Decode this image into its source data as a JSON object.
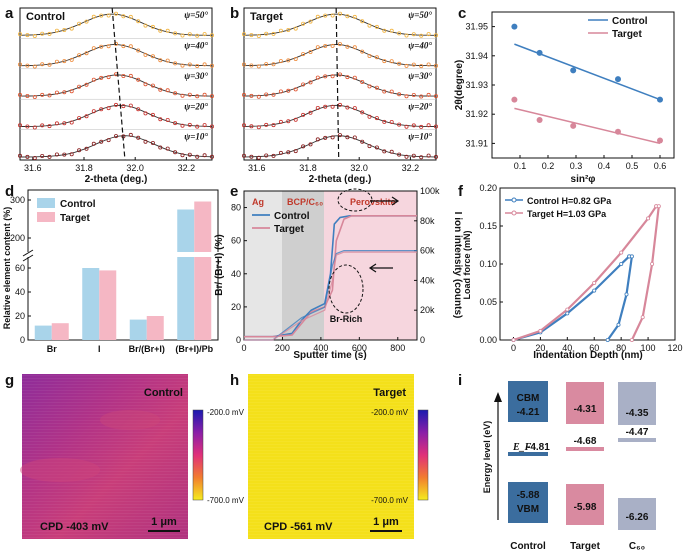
{
  "panel_letters": [
    "a",
    "b",
    "c",
    "d",
    "e",
    "f",
    "g",
    "h",
    "i"
  ],
  "colors": {
    "control": "#3f7fbf",
    "target": "#d7879a",
    "peak": "#c0392b"
  },
  "chart_data": [
    {
      "id": "a",
      "type": "line",
      "title": "Control",
      "xlabel": "2-theta (deg.)",
      "xlim": [
        31.55,
        32.3
      ],
      "xticks": [
        "31.6",
        "31.8",
        "32.0",
        "32.2"
      ],
      "psi_labels": [
        "ψ=50°",
        "ψ=40°",
        "ψ=30°",
        "ψ=20°",
        "ψ=10°"
      ],
      "peak_positions": [
        31.91,
        31.92,
        31.93,
        31.94,
        31.96
      ],
      "curve_colors": [
        "#f2b33d",
        "#ee8a3a",
        "#e0542f",
        "#c8312c",
        "#8a1f1f"
      ]
    },
    {
      "id": "b",
      "type": "line",
      "title": "Target",
      "xlabel": "2-theta (deg.)",
      "xlim": [
        31.55,
        32.3
      ],
      "xticks": [
        "31.6",
        "31.8",
        "32.0",
        "32.2"
      ],
      "psi_labels": [
        "ψ=50°",
        "ψ=40°",
        "ψ=30°",
        "ψ=20°",
        "ψ=10°"
      ],
      "peak_positions": [
        31.91,
        31.91,
        31.91,
        31.91,
        31.92
      ],
      "curve_colors": [
        "#f2b33d",
        "#ee8a3a",
        "#e0542f",
        "#c8312c",
        "#8a1f1f"
      ]
    },
    {
      "id": "c",
      "type": "scatter",
      "xlabel": "sin²φ",
      "ylabel": "2θ(degree)",
      "xlim": [
        0.0,
        0.65
      ],
      "ylim": [
        31.905,
        31.955
      ],
      "xticks": [
        "0.1",
        "0.2",
        "0.3",
        "0.4",
        "0.5",
        "0.6"
      ],
      "yticks": [
        "31.91",
        "31.92",
        "31.93",
        "31.94",
        "31.95"
      ],
      "series": [
        {
          "name": "Control",
          "x": [
            0.08,
            0.17,
            0.29,
            0.45,
            0.6
          ],
          "y": [
            31.95,
            31.941,
            31.935,
            31.932,
            31.925
          ],
          "fit": [
            [
              0.08,
              31.944
            ],
            [
              0.6,
              31.925
            ]
          ]
        },
        {
          "name": "Target",
          "x": [
            0.08,
            0.17,
            0.29,
            0.45,
            0.6
          ],
          "y": [
            31.925,
            31.918,
            31.916,
            31.914,
            31.911
          ],
          "fit": [
            [
              0.08,
              31.922
            ],
            [
              0.6,
              31.91
            ]
          ]
        }
      ]
    },
    {
      "id": "d",
      "type": "bar",
      "ylabel": "Relative element content (%)",
      "categories": [
        "Br",
        "I",
        "Br/(Br+I)",
        "(Br+I)/Pb"
      ],
      "yticks_low": [
        "0",
        "20",
        "40",
        "60"
      ],
      "yticks_high": [
        "200",
        "300"
      ],
      "series": [
        {
          "name": "Control",
          "values": [
            12,
            60,
            17,
            275
          ]
        },
        {
          "name": "Target",
          "values": [
            14,
            58,
            20,
            296
          ]
        }
      ]
    },
    {
      "id": "e",
      "type": "line",
      "xlabel": "Sputter time (s)",
      "ylabel_left": "Br/ (Br+I) (%)",
      "ylabel_right": "I ion intensity (counts)",
      "xlim": [
        0,
        900
      ],
      "xticks": [
        "0",
        "200",
        "400",
        "600",
        "800"
      ],
      "ylim_left": [
        0,
        90
      ],
      "yticks_left": [
        "0",
        "20",
        "40",
        "60",
        "80"
      ],
      "ylim_right": [
        0,
        100000
      ],
      "yticks_right": [
        "0",
        "20k",
        "40k",
        "60k",
        "80k",
        "100k"
      ],
      "regions": [
        "Ag",
        "BCP/C₆₀",
        "Perovskite"
      ],
      "annotation": "Br-Rich",
      "series": [
        {
          "name": "Control",
          "x": [
            0,
            150,
            250,
            300,
            350,
            420,
            450,
            470,
            500,
            550,
            900
          ],
          "y": [
            2,
            2,
            4,
            12,
            18,
            22,
            40,
            70,
            74,
            75,
            75
          ]
        },
        {
          "name": "Target",
          "x": [
            0,
            150,
            250,
            300,
            350,
            420,
            460,
            480,
            520,
            560,
            900
          ],
          "y": [
            2,
            2,
            3,
            10,
            17,
            20,
            30,
            60,
            73,
            75,
            75
          ]
        }
      ]
    },
    {
      "id": "f",
      "type": "line",
      "xlabel": "Indentation Depth (nm)",
      "ylabel": "Load force (mN)",
      "xlim": [
        -10,
        120
      ],
      "ylim": [
        0,
        0.2
      ],
      "xticks": [
        "0",
        "20",
        "40",
        "60",
        "80",
        "100",
        "120"
      ],
      "yticks": [
        "0.00",
        "0.05",
        "0.10",
        "0.15",
        "0.20"
      ],
      "series": [
        {
          "name": "Control H=0.82 GPa",
          "loading": [
            [
              0,
              0
            ],
            [
              20,
              0.01
            ],
            [
              40,
              0.035
            ],
            [
              60,
              0.065
            ],
            [
              80,
              0.1
            ],
            [
              86,
              0.11
            ]
          ],
          "unloading": [
            [
              86,
              0.11
            ],
            [
              88,
              0.11
            ],
            [
              84,
              0.06
            ],
            [
              78,
              0.02
            ],
            [
              70,
              0
            ]
          ]
        },
        {
          "name": "Target  H=1.03 GPa",
          "loading": [
            [
              0,
              0
            ],
            [
              20,
              0.012
            ],
            [
              40,
              0.04
            ],
            [
              60,
              0.075
            ],
            [
              80,
              0.115
            ],
            [
              100,
              0.16
            ],
            [
              106,
              0.176
            ]
          ],
          "unloading": [
            [
              106,
              0.176
            ],
            [
              108,
              0.176
            ],
            [
              103,
              0.1
            ],
            [
              96,
              0.03
            ],
            [
              88,
              0
            ]
          ]
        }
      ]
    }
  ],
  "panel_g": {
    "label": "Control",
    "cpd": "CPD -403 mV",
    "scale": "1 μm",
    "cb_top": "-200.0 mV",
    "cb_bottom": "-700.0 mV"
  },
  "panel_h": {
    "label": "Target",
    "cpd": "CPD -561 mV",
    "scale": "1 μm",
    "cb_top": "-200.0 mV",
    "cb_bottom": "-700.0 mV"
  },
  "panel_i": {
    "ylabel": "Energy level (eV)",
    "columns": [
      "Control",
      "Target",
      "C₆₀"
    ],
    "control": {
      "cbm_label": "CBM",
      "cbm": "-4.21",
      "ef_label": "E_F",
      "ef": "-4.81",
      "vbm": "-5.88",
      "vbm_label": "VBM"
    },
    "target": {
      "cbm": "-4.31",
      "ef": "-4.68",
      "vbm": "-5.98"
    },
    "c60": {
      "cbm": "-4.35",
      "ef": "-4.47",
      "vbm": "-6.26"
    }
  }
}
